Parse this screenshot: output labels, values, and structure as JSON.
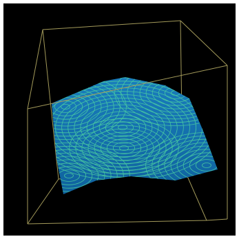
{
  "chart_data": {
    "type": "surface"
  }
}
